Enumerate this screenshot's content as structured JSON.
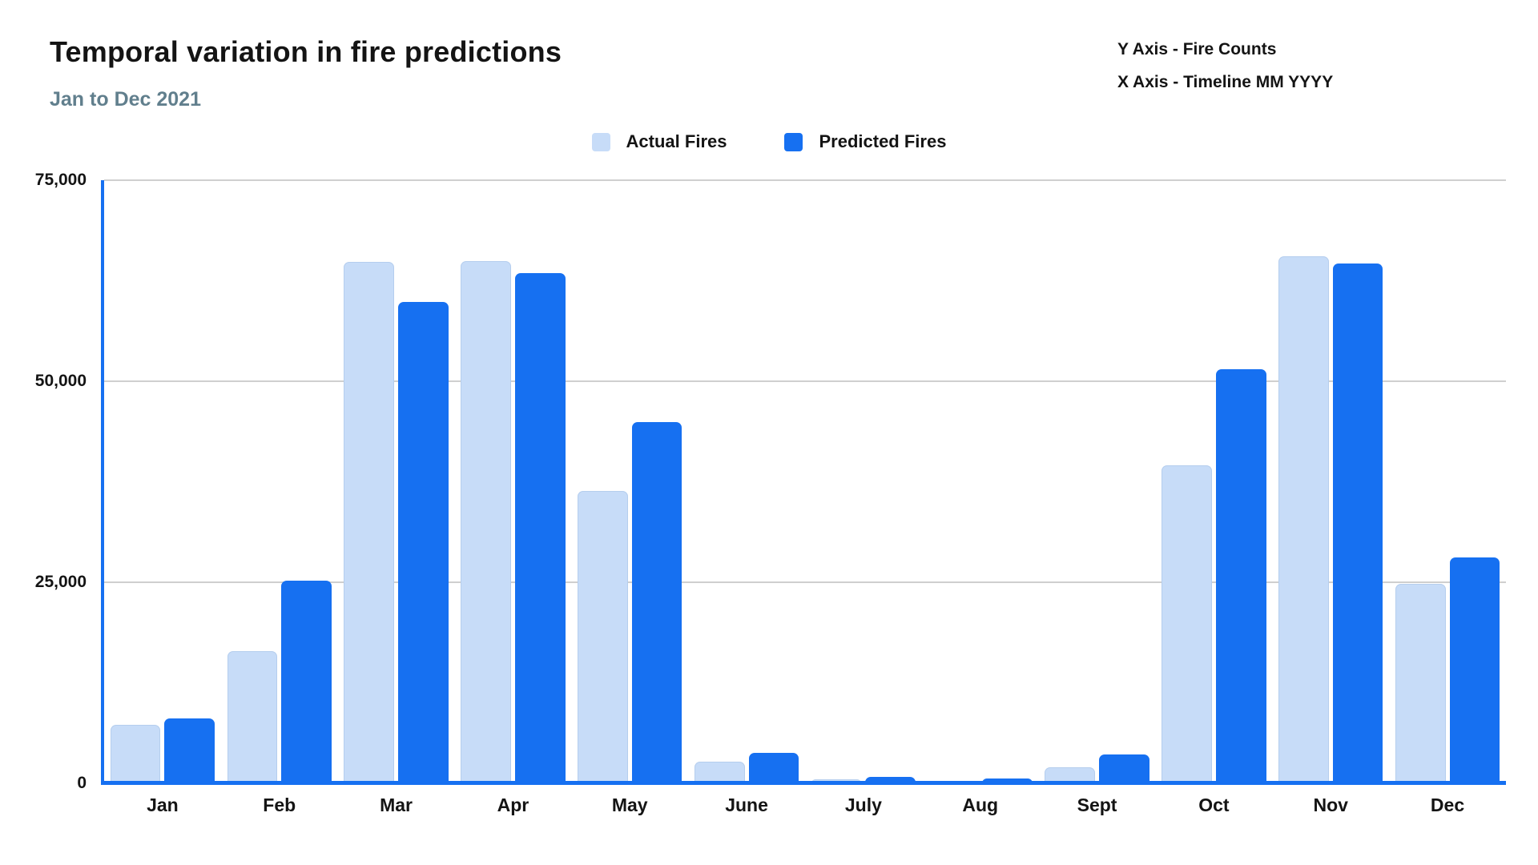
{
  "header": {
    "title": "Temporal variation in fire predictions",
    "subtitle": "Jan to Dec 2021",
    "y_axis_note": "Y Axis - Fire Counts",
    "x_axis_note": "X Axis - Timeline MM YYYY"
  },
  "colors": {
    "actual_fill": "#c7dcf8",
    "predicted_fill": "#1670f1",
    "axis_line": "#1670f1",
    "gridline": "#cfcfcf",
    "subtitle_text": "#617f8d",
    "text": "#141414"
  },
  "chart_data": {
    "type": "bar",
    "title": "Temporal variation in fire predictions",
    "subtitle": "Jan to Dec 2021",
    "xlabel": "Timeline MM YYYY",
    "ylabel": "Fire Counts",
    "categories": [
      "Jan",
      "Feb",
      "Mar",
      "Apr",
      "May",
      "June",
      "July",
      "Aug",
      "Sept",
      "Oct",
      "Nov",
      "Dec"
    ],
    "series": [
      {
        "name": "Actual Fires",
        "color": "#c7dcf8",
        "values": [
          7300,
          16400,
          64800,
          64900,
          36400,
          2700,
          500,
          250,
          2000,
          39500,
          65500,
          24800
        ]
      },
      {
        "name": "Predicted Fires",
        "color": "#1670f1",
        "values": [
          8100,
          25200,
          59900,
          63400,
          44900,
          3800,
          800,
          600,
          3600,
          51500,
          64600,
          28100
        ]
      }
    ],
    "ylim": [
      0,
      75000
    ],
    "yticks": [
      0,
      25000,
      50000,
      75000
    ],
    "ytick_labels": [
      "0",
      "25,000",
      "50,000",
      "75,000"
    ],
    "grid": true,
    "legend_position": "top-center"
  }
}
